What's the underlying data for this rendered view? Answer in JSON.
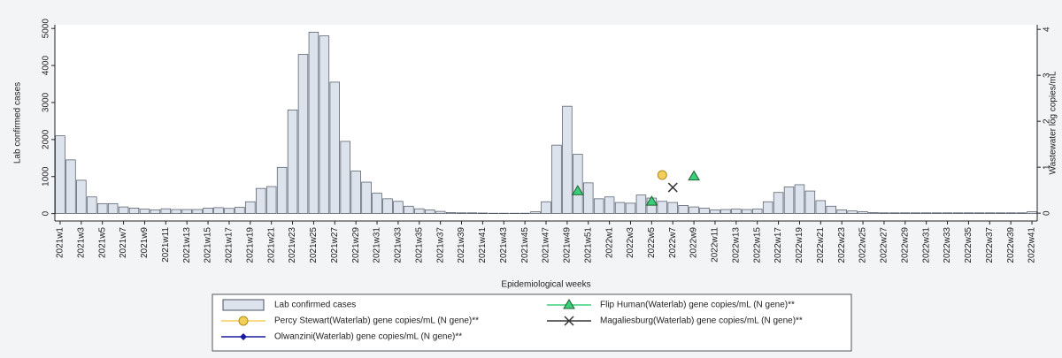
{
  "chart_data": {
    "type": "bar",
    "y_label": "Lab confirmed cases",
    "y2_label": "Wastewater log copies/mL",
    "x_label": "Epidemiological weeks",
    "categories": [
      "2021w1",
      null,
      "2021w3",
      null,
      "2021w5",
      null,
      "2021w7",
      null,
      "2021w9",
      null,
      "2021w11",
      null,
      "2021w13",
      null,
      "2021w15",
      null,
      "2021w17",
      null,
      "2021w19",
      null,
      "2021w21",
      null,
      "2021w23",
      null,
      "2021w25",
      null,
      "2021w27",
      null,
      "2021w29",
      null,
      "2021w31",
      null,
      "2021w33",
      null,
      "2021w35",
      null,
      "2021w37",
      null,
      "2021w39",
      null,
      "2021w41",
      null,
      "2021w43",
      null,
      "2021w45",
      null,
      "2021w47",
      null,
      "2021w49",
      null,
      "2021w51",
      null,
      "2022w1",
      null,
      "2022w3",
      null,
      "2022w5",
      null,
      "2022w7",
      null,
      "2022w9",
      null,
      "2022w11",
      null,
      "2022w13",
      null,
      "2022w15",
      null,
      "2022w17",
      null,
      "2022w19",
      null,
      "2022w21",
      null,
      "2022w23",
      null,
      "2022w25",
      null,
      "2022w27",
      null,
      "2022w29",
      null,
      "2022w31",
      null,
      "2022w33",
      null,
      "2022w35",
      null,
      "2022w37",
      null,
      "2022w39",
      null,
      "2022w41"
    ],
    "ylim": [
      -200,
      5100
    ],
    "yticks": [
      0,
      1000,
      2000,
      3000,
      4000,
      5000
    ],
    "y2lim": [
      -0.17,
      4.1
    ],
    "y2ticks": [
      0,
      1,
      2,
      3,
      4
    ],
    "series": [
      {
        "name": "Lab confirmed cases",
        "type": "bar",
        "color": "#dde3ed",
        "values": [
          2100,
          1450,
          900,
          450,
          270,
          270,
          180,
          150,
          120,
          100,
          130,
          110,
          110,
          110,
          150,
          160,
          140,
          170,
          320,
          680,
          730,
          1250,
          2800,
          4300,
          4900,
          4800,
          3550,
          1950,
          1150,
          850,
          550,
          400,
          330,
          200,
          130,
          100,
          60,
          30,
          20,
          20,
          15,
          10,
          10,
          10,
          10,
          50,
          320,
          1850,
          2900,
          1600,
          830,
          400,
          450,
          300,
          280,
          500,
          420,
          330,
          300,
          220,
          180,
          150,
          100,
          110,
          120,
          110,
          120,
          320,
          570,
          720,
          780,
          610,
          350,
          200,
          100,
          70,
          50,
          30,
          20,
          20,
          20,
          20,
          20,
          20,
          20,
          20,
          20,
          20,
          20,
          20,
          20,
          20,
          50
        ]
      },
      {
        "name": "Flip Human(Waterlab) gene copies/mL (N gene)**",
        "type": "line",
        "axis": "y2",
        "marker": "triangle",
        "color": "#3ad07a",
        "values": [
          null,
          null,
          null,
          null,
          null,
          null,
          null,
          null,
          null,
          null,
          null,
          null,
          null,
          null,
          null,
          null,
          null,
          null,
          null,
          null,
          null,
          null,
          null,
          null,
          null,
          null,
          null,
          null,
          null,
          null,
          null,
          null,
          null,
          null,
          null,
          null,
          null,
          null,
          null,
          null,
          null,
          null,
          null,
          null,
          null,
          null,
          null,
          null,
          null,
          0.48,
          null,
          null,
          null,
          null,
          null,
          null,
          0.25,
          null,
          null,
          null,
          0.8,
          null,
          null,
          null,
          null,
          null,
          null,
          null,
          null,
          null,
          null,
          null,
          null,
          null,
          null,
          null,
          null,
          null,
          null,
          null,
          null,
          null,
          null,
          null,
          null,
          null,
          null,
          null,
          null,
          null,
          null,
          null,
          null
        ]
      },
      {
        "name": "Percy Stewart(Waterlab) gene copies/mL (N gene)**",
        "type": "line",
        "axis": "y2",
        "marker": "circle",
        "color": "#f3cf5a",
        "values": [
          null,
          null,
          null,
          null,
          null,
          null,
          null,
          null,
          null,
          null,
          null,
          null,
          null,
          null,
          null,
          null,
          null,
          null,
          null,
          null,
          null,
          null,
          null,
          null,
          null,
          null,
          null,
          null,
          null,
          null,
          null,
          null,
          null,
          null,
          null,
          null,
          null,
          null,
          null,
          null,
          null,
          null,
          null,
          null,
          null,
          null,
          null,
          null,
          null,
          null,
          null,
          null,
          null,
          null,
          null,
          null,
          null,
          0.83,
          null,
          null,
          null,
          null,
          null,
          null,
          null,
          null,
          null,
          null,
          null,
          null,
          null,
          null,
          null,
          null,
          null,
          null,
          null,
          null,
          null,
          null,
          null,
          null,
          null,
          null,
          null,
          null,
          null,
          null,
          null,
          null,
          null,
          null,
          null
        ]
      },
      {
        "name": "Magaliesburg(Waterlab) gene copies/mL (N gene)**",
        "type": "line",
        "axis": "y2",
        "marker": "x",
        "color": "#333333",
        "values": [
          null,
          null,
          null,
          null,
          null,
          null,
          null,
          null,
          null,
          null,
          null,
          null,
          null,
          null,
          null,
          null,
          null,
          null,
          null,
          null,
          null,
          null,
          null,
          null,
          null,
          null,
          null,
          null,
          null,
          null,
          null,
          null,
          null,
          null,
          null,
          null,
          null,
          null,
          null,
          null,
          null,
          null,
          null,
          null,
          null,
          null,
          null,
          null,
          null,
          null,
          null,
          null,
          null,
          null,
          null,
          null,
          null,
          null,
          0.56,
          null,
          null,
          null,
          null,
          null,
          null,
          null,
          null,
          null,
          null,
          null,
          null,
          null,
          null,
          null,
          null,
          null,
          null,
          null,
          null,
          null,
          null,
          null,
          null,
          null,
          null,
          null,
          null,
          null,
          null,
          null,
          null,
          null,
          null
        ]
      },
      {
        "name": "Olwanzini(Waterlab) gene copies/mL (N gene)**",
        "type": "line",
        "axis": "y2",
        "marker": "diamond",
        "color": "#1a1aa0",
        "values": [
          null,
          null,
          null,
          null,
          null,
          null,
          null,
          null,
          null,
          null,
          null,
          null,
          null,
          null,
          null,
          null,
          null,
          null,
          null,
          null,
          null,
          null,
          null,
          null,
          null,
          null,
          null,
          null,
          null,
          null,
          null,
          null,
          null,
          null,
          null,
          null,
          null,
          null,
          null,
          null,
          null,
          null,
          null,
          null,
          null,
          null,
          null,
          null,
          null,
          null,
          null,
          null,
          null,
          null,
          null,
          null,
          null,
          null,
          null,
          null,
          null,
          null,
          null,
          null,
          null,
          null,
          null,
          null,
          null,
          null,
          null,
          null,
          null,
          null,
          null,
          null,
          null,
          null,
          null,
          null,
          null,
          null,
          null,
          null,
          null,
          null,
          null,
          null,
          null,
          null,
          null,
          null,
          null
        ]
      }
    ]
  }
}
